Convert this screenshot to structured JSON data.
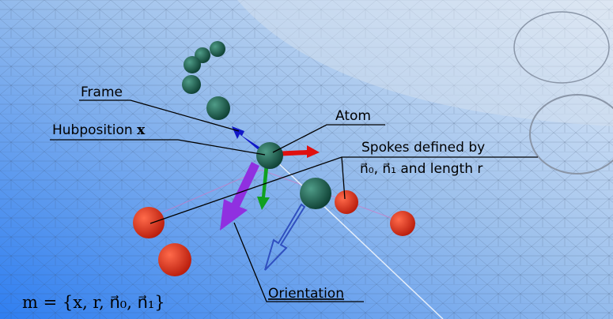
{
  "labels": {
    "frame": "Frame",
    "hubposition": "Hubposition",
    "hub_symbol": "x",
    "atom": "Atom",
    "spokes_line1": "Spokes defined by",
    "spokes_line2": "n⃗₀, n⃗₁ and length r",
    "orientation": "Orientation",
    "formula": "m = {x, r, n⃗₀, n⃗₁}"
  }
}
